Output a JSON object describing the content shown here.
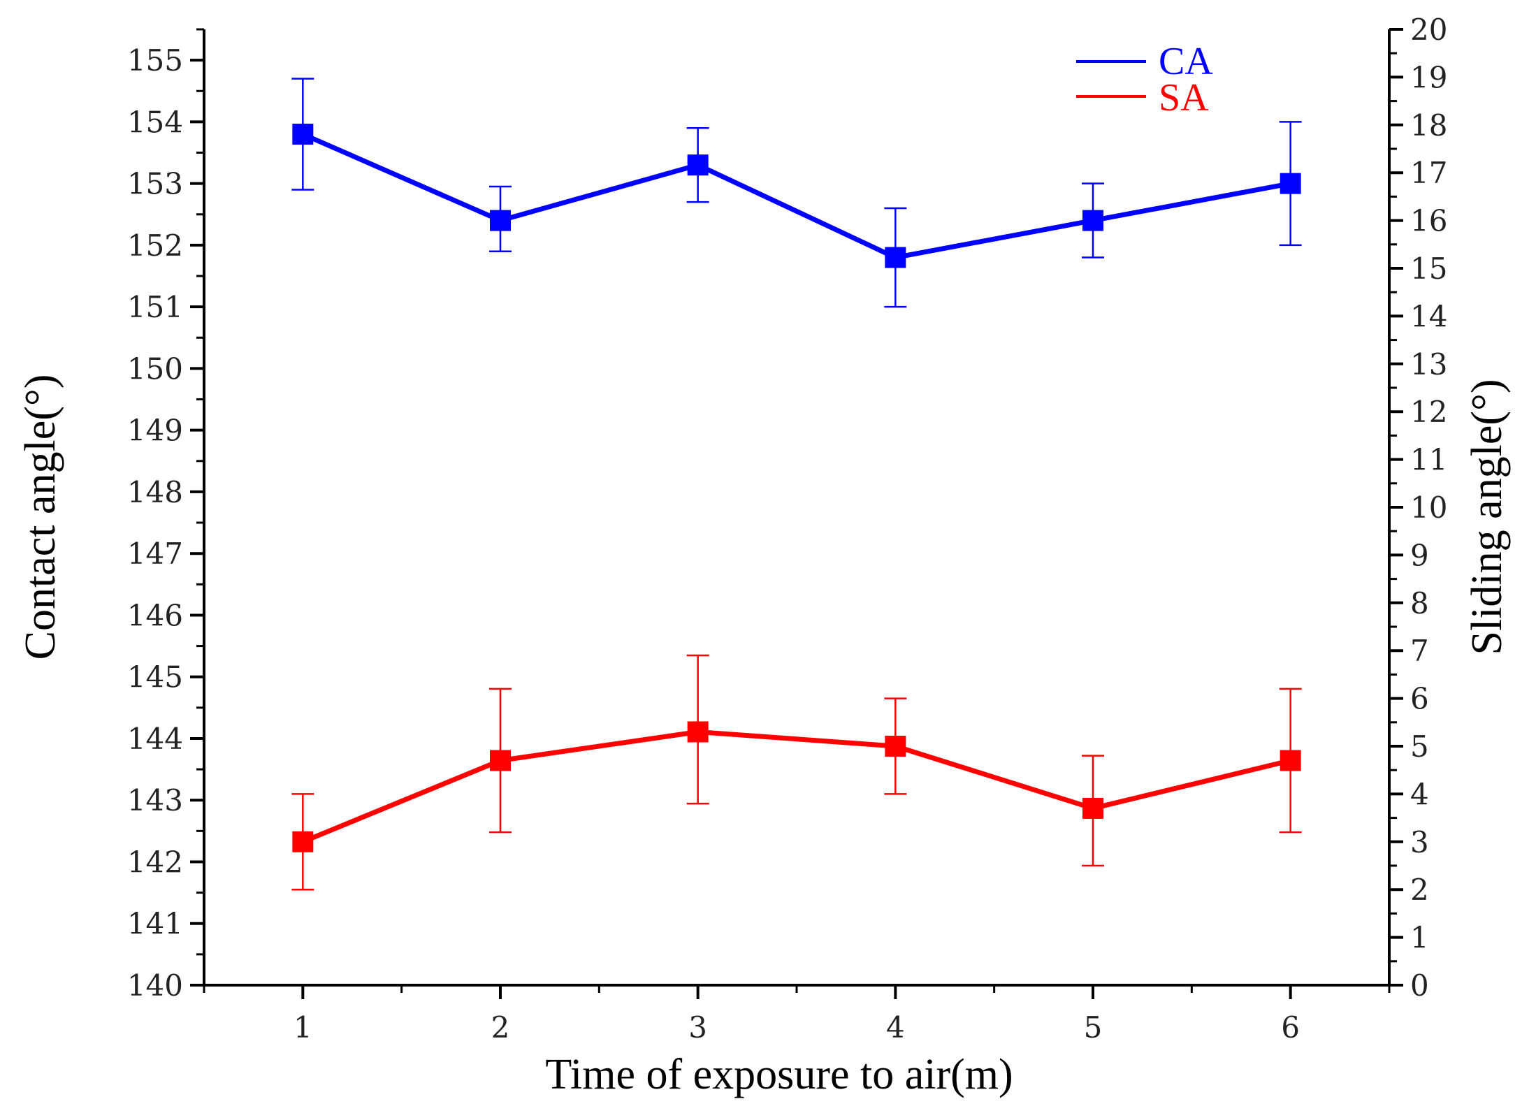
{
  "chart_data": {
    "type": "line",
    "title": "",
    "xlabel": "Time of exposure to air(m)",
    "ylabel_left": "Contact angle(°)",
    "ylabel_right": "Sliding angle(°)",
    "x": [
      1,
      2,
      3,
      4,
      5,
      6
    ],
    "xlim": [
      0.5,
      6.5
    ],
    "x_ticks": [
      "1",
      "2",
      "3",
      "4",
      "5",
      "6"
    ],
    "ylim_left": [
      140,
      155.5
    ],
    "y_ticks_left": [
      "140",
      "141",
      "142",
      "143",
      "144",
      "145",
      "146",
      "147",
      "148",
      "149",
      "150",
      "151",
      "152",
      "153",
      "154",
      "155"
    ],
    "ylim_right": [
      0,
      20
    ],
    "y_ticks_right": [
      "0",
      "1",
      "2",
      "3",
      "4",
      "5",
      "6",
      "7",
      "8",
      "9",
      "10",
      "11",
      "12",
      "13",
      "14",
      "15",
      "16",
      "17",
      "18",
      "19",
      "20"
    ],
    "legend_position": "top-right",
    "series": [
      {
        "name": "CA",
        "axis": "left",
        "color": "#0000ff",
        "values": [
          153.8,
          152.4,
          153.3,
          151.8,
          152.4,
          153.0
        ],
        "err_low": [
          152.9,
          151.9,
          152.7,
          151.0,
          151.8,
          152.0
        ],
        "err_high": [
          154.7,
          152.95,
          153.9,
          152.6,
          153.0,
          154.0
        ]
      },
      {
        "name": "SA",
        "axis": "right",
        "color": "#ff0000",
        "values": [
          3.0,
          4.7,
          5.3,
          5.0,
          3.7,
          4.7
        ],
        "err_low": [
          2.0,
          3.2,
          3.8,
          4.0,
          2.5,
          3.2
        ],
        "err_high": [
          4.0,
          6.2,
          6.9,
          6.0,
          4.8,
          6.2
        ]
      }
    ]
  }
}
